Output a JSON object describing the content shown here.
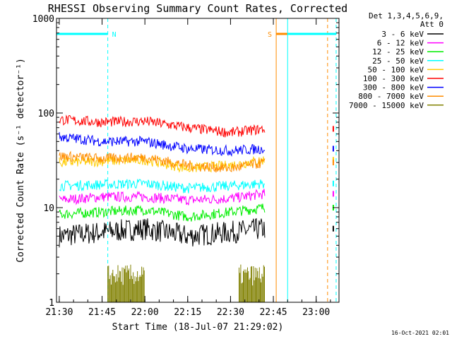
{
  "chart_data": {
    "type": "line",
    "title": "RHESSI Observing Summary Count Rates, Corrected",
    "xlabel": "Start Time (18-Jul-07 21:29:02)",
    "ylabel": "Corrected Count Rate (s⁻¹ detector⁻¹)",
    "y_scale": "log",
    "ylim": [
      1,
      1000
    ],
    "y_ticks": [
      {
        "value": 1,
        "label": "1"
      },
      {
        "value": 10,
        "label": "10"
      },
      {
        "value": 100,
        "label": "100"
      },
      {
        "value": 1000,
        "label": "1000"
      }
    ],
    "xlim": [
      "21:29:02",
      "23:08:00"
    ],
    "x_ticks": [
      "21:30",
      "21:45",
      "22:00",
      "22:15",
      "22:30",
      "22:45",
      "23:00"
    ],
    "grid": false,
    "legend_position": "right",
    "legend_header": [
      "Det 1,3,4,5,6,9,",
      "Att 0"
    ],
    "footer": "16-Oct-2021 02:01",
    "series": [
      {
        "name": "3 - 6 keV",
        "color": "#000000",
        "x": [
          "21:30",
          "21:45",
          "22:00",
          "22:15",
          "22:30",
          "22:42"
        ],
        "values": [
          5,
          5.5,
          6,
          5,
          5.5,
          6
        ]
      },
      {
        "name": "6 - 12 keV",
        "color": "#ff00ff",
        "x": [
          "21:30",
          "21:45",
          "22:00",
          "22:15",
          "22:30",
          "22:42"
        ],
        "values": [
          12,
          13,
          13,
          12,
          12.5,
          14
        ]
      },
      {
        "name": "12 - 25 keV",
        "color": "#00ee00",
        "x": [
          "21:30",
          "21:45",
          "22:00",
          "22:15",
          "22:30",
          "22:42"
        ],
        "values": [
          8.5,
          9,
          9.5,
          8,
          9,
          10
        ]
      },
      {
        "name": "25 - 50 keV",
        "color": "#00ffff",
        "x": [
          "21:30",
          "21:45",
          "22:00",
          "22:15",
          "22:30",
          "22:42"
        ],
        "values": [
          17,
          17.5,
          18,
          16,
          17,
          18
        ]
      },
      {
        "name": "50 - 100 keV",
        "color": "#ffcc00",
        "x": [
          "21:30",
          "21:45",
          "22:00",
          "22:15",
          "22:30",
          "22:42"
        ],
        "values": [
          30,
          31,
          32,
          26,
          28,
          32
        ]
      },
      {
        "name": "100 - 300 keV",
        "color": "#ff0000",
        "x": [
          "21:30",
          "21:45",
          "22:00",
          "22:15",
          "22:30",
          "22:42"
        ],
        "values": [
          85,
          80,
          82,
          70,
          62,
          68
        ]
      },
      {
        "name": "300 - 800 keV",
        "color": "#0000ff",
        "x": [
          "21:30",
          "21:45",
          "22:00",
          "22:15",
          "22:30",
          "22:42"
        ],
        "values": [
          56,
          50,
          50,
          42,
          40,
          42
        ]
      },
      {
        "name": "800 - 7000 keV",
        "color": "#ff8c00",
        "x": [
          "21:30",
          "21:45",
          "22:00",
          "22:15",
          "22:30",
          "22:42"
        ],
        "values": [
          35,
          33,
          34,
          28,
          26,
          30
        ]
      },
      {
        "name": "7000 - 15000 keV",
        "color": "#808000",
        "x": [
          "21:47",
          "22:00",
          "22:33",
          "22:42"
        ],
        "values": [
          1.5,
          1.5,
          1.5,
          1.5
        ]
      }
    ],
    "flags": [
      {
        "label": "N",
        "color": "#00ffff",
        "x_start": "21:29:02",
        "x_end": "21:47"
      },
      {
        "label": "S",
        "color": "#ff8c00",
        "x_start": "22:46",
        "x_end": "23:04"
      },
      {
        "label": "",
        "color": "#00ffff",
        "x_start": "22:50",
        "x_end": "23:07"
      }
    ]
  }
}
